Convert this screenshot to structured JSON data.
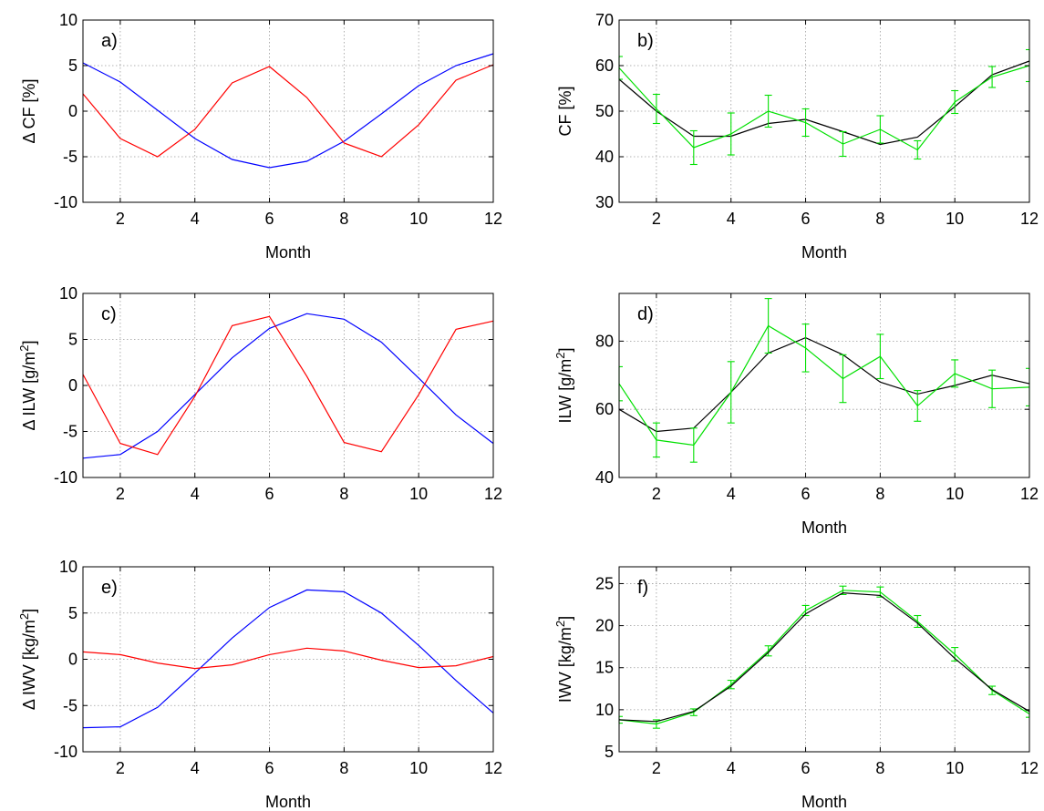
{
  "figure": {
    "panels": [
      {
        "panel_label": "a)",
        "xlabel": "Month",
        "ylabel": "Δ CF [%]",
        "ylabel_sup": "",
        "ylabel_suffix": ""
      },
      {
        "panel_label": "b)",
        "xlabel": "Month",
        "ylabel": "CF [%]",
        "ylabel_sup": "",
        "ylabel_suffix": ""
      },
      {
        "panel_label": "c)",
        "xlabel": "",
        "ylabel": "Δ ILW [g/m",
        "ylabel_sup": "2",
        "ylabel_suffix": "]"
      },
      {
        "panel_label": "d)",
        "xlabel": "Month",
        "ylabel": "ILW [g/m",
        "ylabel_sup": "2",
        "ylabel_suffix": "]"
      },
      {
        "panel_label": "e)",
        "xlabel": "Month",
        "ylabel": "Δ IWV [kg/m",
        "ylabel_sup": "2",
        "ylabel_suffix": "]"
      },
      {
        "panel_label": "f)",
        "xlabel": "Month",
        "ylabel": "IWV [kg/m",
        "ylabel_sup": "2",
        "ylabel_suffix": "]"
      }
    ]
  },
  "chart_data": [
    {
      "type": "line",
      "grid": true,
      "x": [
        1,
        2,
        3,
        4,
        5,
        6,
        7,
        8,
        9,
        10,
        11,
        12
      ],
      "xlim": [
        1,
        12
      ],
      "xticks": [
        2,
        4,
        6,
        8,
        10,
        12
      ],
      "ylim": [
        -10,
        10
      ],
      "yticks": [
        -10,
        -5,
        0,
        5,
        10
      ],
      "series": [
        {
          "color": "#0000ff",
          "values": [
            5.3,
            3.2,
            0.1,
            -3.0,
            -5.3,
            -6.2,
            -5.5,
            -3.3,
            -0.3,
            2.8,
            5.0,
            6.3
          ]
        },
        {
          "color": "#ff0000",
          "values": [
            1.9,
            -3.0,
            -5.0,
            -2.0,
            3.1,
            4.9,
            1.5,
            -3.5,
            -5.0,
            -1.5,
            3.4,
            5.1
          ]
        }
      ]
    },
    {
      "type": "line",
      "grid": true,
      "x": [
        1,
        2,
        3,
        4,
        5,
        6,
        7,
        8,
        9,
        10,
        11,
        12
      ],
      "xlim": [
        1,
        12
      ],
      "xticks": [
        2,
        4,
        6,
        8,
        10,
        12
      ],
      "ylim": [
        30,
        70
      ],
      "yticks": [
        30,
        40,
        50,
        60,
        70
      ],
      "series": [
        {
          "color": "#000000",
          "values": [
            57,
            50,
            44.5,
            44.5,
            47.3,
            48.2,
            45.5,
            42.7,
            44.3,
            51,
            58,
            61
          ]
        },
        {
          "color": "#00e000",
          "values": [
            59.5,
            50.5,
            42,
            45,
            50,
            47.5,
            42.8,
            46,
            41.5,
            52,
            57.5,
            60
          ],
          "errors": [
            2.5,
            3.2,
            3.7,
            4.6,
            3.5,
            3.0,
            2.7,
            3.0,
            2.0,
            2.5,
            2.3,
            3.5
          ]
        }
      ]
    },
    {
      "type": "line",
      "grid": true,
      "x": [
        1,
        2,
        3,
        4,
        5,
        6,
        7,
        8,
        9,
        10,
        11,
        12
      ],
      "xlim": [
        1,
        12
      ],
      "xticks": [
        2,
        4,
        6,
        8,
        10,
        12
      ],
      "ylim": [
        -10,
        10
      ],
      "yticks": [
        -10,
        -5,
        0,
        5,
        10
      ],
      "series": [
        {
          "color": "#0000ff",
          "values": [
            -7.9,
            -7.5,
            -5.0,
            -1.0,
            3.0,
            6.2,
            7.8,
            7.2,
            4.7,
            0.8,
            -3.2,
            -6.3
          ]
        },
        {
          "color": "#ff0000",
          "values": [
            1.2,
            -6.3,
            -7.5,
            -1.2,
            6.5,
            7.5,
            1.0,
            -6.2,
            -7.2,
            -1.0,
            6.1,
            7.0
          ]
        }
      ]
    },
    {
      "type": "line",
      "grid": true,
      "x": [
        1,
        2,
        3,
        4,
        5,
        6,
        7,
        8,
        9,
        10,
        11,
        12
      ],
      "xlim": [
        1,
        12
      ],
      "xticks": [
        2,
        4,
        6,
        8,
        10,
        12
      ],
      "ylim": [
        40,
        94
      ],
      "yticks": [
        40,
        60,
        80
      ],
      "series": [
        {
          "color": "#000000",
          "values": [
            60,
            53.5,
            54.5,
            65,
            76.5,
            81,
            76,
            68,
            64.5,
            67,
            70,
            67.5
          ]
        },
        {
          "color": "#00e000",
          "values": [
            67.5,
            51,
            49.5,
            65,
            84.5,
            78,
            69,
            75.5,
            61,
            70.5,
            66,
            66.5
          ],
          "errors": [
            5,
            5,
            5,
            9,
            8,
            7,
            7,
            6.5,
            4.5,
            4,
            5.5,
            5.5
          ]
        }
      ]
    },
    {
      "type": "line",
      "grid": true,
      "x": [
        1,
        2,
        3,
        4,
        5,
        6,
        7,
        8,
        9,
        10,
        11,
        12
      ],
      "xlim": [
        1,
        12
      ],
      "xticks": [
        2,
        4,
        6,
        8,
        10,
        12
      ],
      "ylim": [
        -10,
        10
      ],
      "yticks": [
        -10,
        -5,
        0,
        5,
        10
      ],
      "series": [
        {
          "color": "#0000ff",
          "values": [
            -7.4,
            -7.3,
            -5.2,
            -1.5,
            2.3,
            5.6,
            7.5,
            7.3,
            5.0,
            1.5,
            -2.3,
            -5.8
          ]
        },
        {
          "color": "#ff0000",
          "values": [
            0.8,
            0.5,
            -0.4,
            -1.0,
            -0.6,
            0.5,
            1.2,
            0.9,
            -0.1,
            -0.9,
            -0.7,
            0.3
          ]
        }
      ]
    },
    {
      "type": "line",
      "grid": true,
      "x": [
        1,
        2,
        3,
        4,
        5,
        6,
        7,
        8,
        9,
        10,
        11,
        12
      ],
      "xlim": [
        1,
        12
      ],
      "xticks": [
        2,
        4,
        6,
        8,
        10,
        12
      ],
      "ylim": [
        5,
        27
      ],
      "yticks": [
        5,
        10,
        15,
        20,
        25
      ],
      "series": [
        {
          "color": "#00e000",
          "values": [
            8.8,
            8.3,
            9.7,
            13.0,
            17.0,
            21.8,
            24.2,
            24.0,
            20.5,
            16.6,
            12.3,
            9.5
          ],
          "errors": [
            0.4,
            0.5,
            0.4,
            0.5,
            0.6,
            0.6,
            0.5,
            0.6,
            0.7,
            0.8,
            0.5,
            0.4
          ]
        },
        {
          "color": "#000000",
          "values": [
            8.8,
            8.6,
            9.8,
            12.8,
            16.8,
            21.4,
            23.9,
            23.6,
            20.3,
            16.1,
            12.4,
            9.8
          ]
        }
      ]
    }
  ]
}
